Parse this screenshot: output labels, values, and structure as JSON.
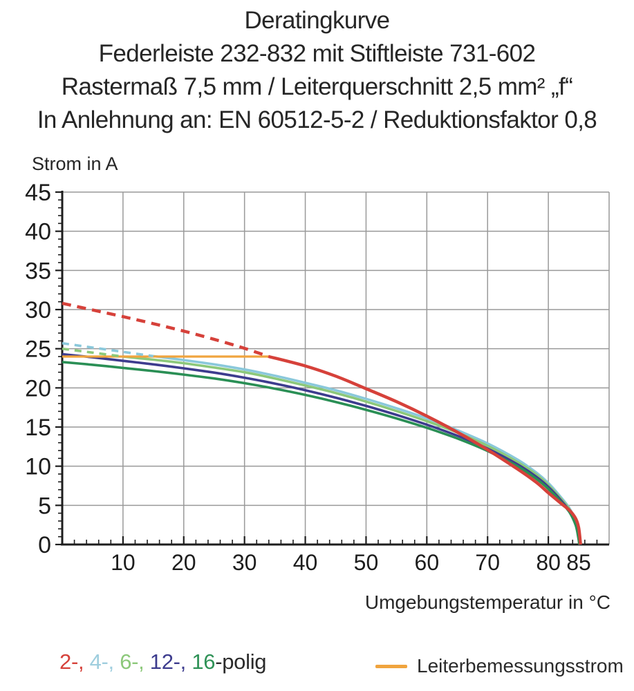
{
  "title": {
    "line1": "Deratingkurve",
    "line2": "Federleiste 232-832 mit Stiftleiste 731-602",
    "line3": "Rastermaß 7,5 mm / Leiterquerschnitt 2,5 mm² „f“",
    "line4": "In Anlehnung an: EN 60512-5-2 / Reduktionsfaktor 0,8"
  },
  "legend": {
    "pole_items": [
      {
        "label": "2-,",
        "color": "#d6413a"
      },
      {
        "label": "4-,",
        "color": "#9fcede"
      },
      {
        "label": "6-,",
        "color": "#8cc87a"
      },
      {
        "label": "12-,",
        "color": "#3d3c8e"
      },
      {
        "label": "16",
        "color": "#2f9257"
      }
    ],
    "suffix": "-polig",
    "rated_current_label": "Leiterbemessungsstrom",
    "rated_current_color": "#f0a43e"
  },
  "chart_data": {
    "type": "line",
    "title": "Deratingkurve",
    "xlabel": "Umgebungstemperatur in °C",
    "ylabel": "Strom in A",
    "xlim": [
      0,
      90
    ],
    "ylim": [
      0,
      45
    ],
    "x_major_ticks": [
      10,
      20,
      30,
      40,
      50,
      60,
      70,
      80,
      85
    ],
    "x_gridlines": [
      10,
      20,
      30,
      40,
      50,
      60,
      70,
      80,
      90
    ],
    "x_minor_step": 2,
    "x_minor_max": 88,
    "y_major_ticks": [
      0,
      5,
      10,
      15,
      20,
      25,
      30,
      35,
      40,
      45
    ],
    "y_gridlines": [
      5,
      10,
      15,
      20,
      25,
      30,
      35,
      40,
      45
    ],
    "y_minor_step": 1,
    "grid": true,
    "grid_color": "#999999",
    "axis_color": "#1d1d1d",
    "series": [
      {
        "name": "4-polig",
        "color": "#8ac8db",
        "width": 3.6,
        "dash": null,
        "points": [
          [
            15,
            24.05
          ],
          [
            20,
            23.55
          ],
          [
            25,
            23.0
          ],
          [
            30,
            22.35
          ],
          [
            35,
            21.55
          ],
          [
            40,
            20.65
          ],
          [
            45,
            19.7
          ],
          [
            50,
            18.6
          ],
          [
            55,
            17.4
          ],
          [
            60,
            16.1
          ],
          [
            65,
            14.6
          ],
          [
            70,
            12.9
          ],
          [
            75,
            10.8
          ],
          [
            78,
            9.2
          ],
          [
            80,
            7.85
          ],
          [
            82,
            6.1
          ],
          [
            83.5,
            4.6
          ],
          [
            84.5,
            2.9
          ],
          [
            85.1,
            1.1
          ],
          [
            85.25,
            0
          ]
        ]
      },
      {
        "name": "6-polig",
        "color": "#8cc87a",
        "width": 3.6,
        "dash": null,
        "points": [
          [
            10,
            24.0
          ],
          [
            15,
            23.6
          ],
          [
            20,
            23.15
          ],
          [
            25,
            22.6
          ],
          [
            30,
            22.0
          ],
          [
            35,
            21.2
          ],
          [
            40,
            20.3
          ],
          [
            45,
            19.35
          ],
          [
            50,
            18.25
          ],
          [
            55,
            17.05
          ],
          [
            60,
            15.75
          ],
          [
            65,
            14.3
          ],
          [
            70,
            12.6
          ],
          [
            75,
            10.5
          ],
          [
            78,
            8.95
          ],
          [
            80,
            7.6
          ],
          [
            82,
            5.9
          ],
          [
            83.5,
            4.45
          ],
          [
            84.5,
            2.75
          ],
          [
            85.05,
            1.0
          ],
          [
            85.2,
            0
          ]
        ]
      },
      {
        "name": "12-polig",
        "color": "#3d3c8e",
        "width": 3.6,
        "dash": null,
        "points": [
          [
            0,
            24.3
          ],
          [
            5,
            23.9
          ],
          [
            10,
            23.45
          ],
          [
            15,
            23.0
          ],
          [
            20,
            22.5
          ],
          [
            25,
            21.95
          ],
          [
            30,
            21.3
          ],
          [
            35,
            20.55
          ],
          [
            40,
            19.7
          ],
          [
            45,
            18.75
          ],
          [
            50,
            17.7
          ],
          [
            55,
            16.55
          ],
          [
            60,
            15.3
          ],
          [
            65,
            13.9
          ],
          [
            70,
            12.25
          ],
          [
            75,
            10.2
          ],
          [
            78,
            8.65
          ],
          [
            80,
            7.35
          ],
          [
            82,
            5.7
          ],
          [
            83.5,
            4.25
          ],
          [
            84.5,
            2.6
          ],
          [
            85,
            0.9
          ],
          [
            85.15,
            0
          ]
        ]
      },
      {
        "name": "16-polig",
        "color": "#2a8f55",
        "width": 3.6,
        "dash": null,
        "points": [
          [
            0,
            23.3
          ],
          [
            5,
            22.95
          ],
          [
            10,
            22.55
          ],
          [
            15,
            22.15
          ],
          [
            20,
            21.7
          ],
          [
            25,
            21.2
          ],
          [
            30,
            20.6
          ],
          [
            35,
            19.9
          ],
          [
            40,
            19.1
          ],
          [
            45,
            18.2
          ],
          [
            50,
            17.2
          ],
          [
            55,
            16.1
          ],
          [
            60,
            14.9
          ],
          [
            65,
            13.55
          ],
          [
            70,
            11.95
          ],
          [
            75,
            9.95
          ],
          [
            78,
            8.4
          ],
          [
            80,
            7.1
          ],
          [
            82,
            5.5
          ],
          [
            83.5,
            4.1
          ],
          [
            84.5,
            2.45
          ],
          [
            84.95,
            0.8
          ],
          [
            85.1,
            0
          ]
        ]
      },
      {
        "name": "Leiterbemessungsstrom",
        "color": "#f0a43e",
        "width": 3.2,
        "dash": null,
        "points": [
          [
            0,
            24.0
          ],
          [
            34,
            24.0
          ]
        ]
      },
      {
        "name": "4-polig-dashed",
        "color": "#8ac8db",
        "width": 3.6,
        "dash": "10 8",
        "points": [
          [
            0,
            25.7
          ],
          [
            5,
            25.15
          ],
          [
            10,
            24.6
          ],
          [
            15,
            24.05
          ]
        ]
      },
      {
        "name": "6-polig-dashed",
        "color": "#8cc87a",
        "width": 3.6,
        "dash": "10 8",
        "points": [
          [
            0,
            25.0
          ],
          [
            5,
            24.5
          ],
          [
            10,
            24.0
          ]
        ]
      },
      {
        "name": "2-polig-dashed",
        "color": "#d6413a",
        "width": 4.5,
        "dash": "13 9",
        "points": [
          [
            0,
            30.8
          ],
          [
            5,
            29.95
          ],
          [
            10,
            29.1
          ],
          [
            15,
            28.2
          ],
          [
            20,
            27.25
          ],
          [
            25,
            26.2
          ],
          [
            30,
            25.05
          ],
          [
            34,
            24.0
          ]
        ]
      },
      {
        "name": "2-polig",
        "color": "#d6413a",
        "width": 4.5,
        "dash": null,
        "points": [
          [
            34,
            24.0
          ],
          [
            40,
            22.8
          ],
          [
            45,
            21.5
          ],
          [
            50,
            19.9
          ],
          [
            55,
            18.25
          ],
          [
            60,
            16.4
          ],
          [
            65,
            14.35
          ],
          [
            70,
            12.1
          ],
          [
            75,
            9.6
          ],
          [
            78,
            7.95
          ],
          [
            80,
            6.6
          ],
          [
            82,
            5.3
          ],
          [
            83.5,
            4.35
          ],
          [
            84.5,
            3.3
          ],
          [
            85,
            2.1
          ],
          [
            85.3,
            0
          ]
        ]
      }
    ]
  }
}
